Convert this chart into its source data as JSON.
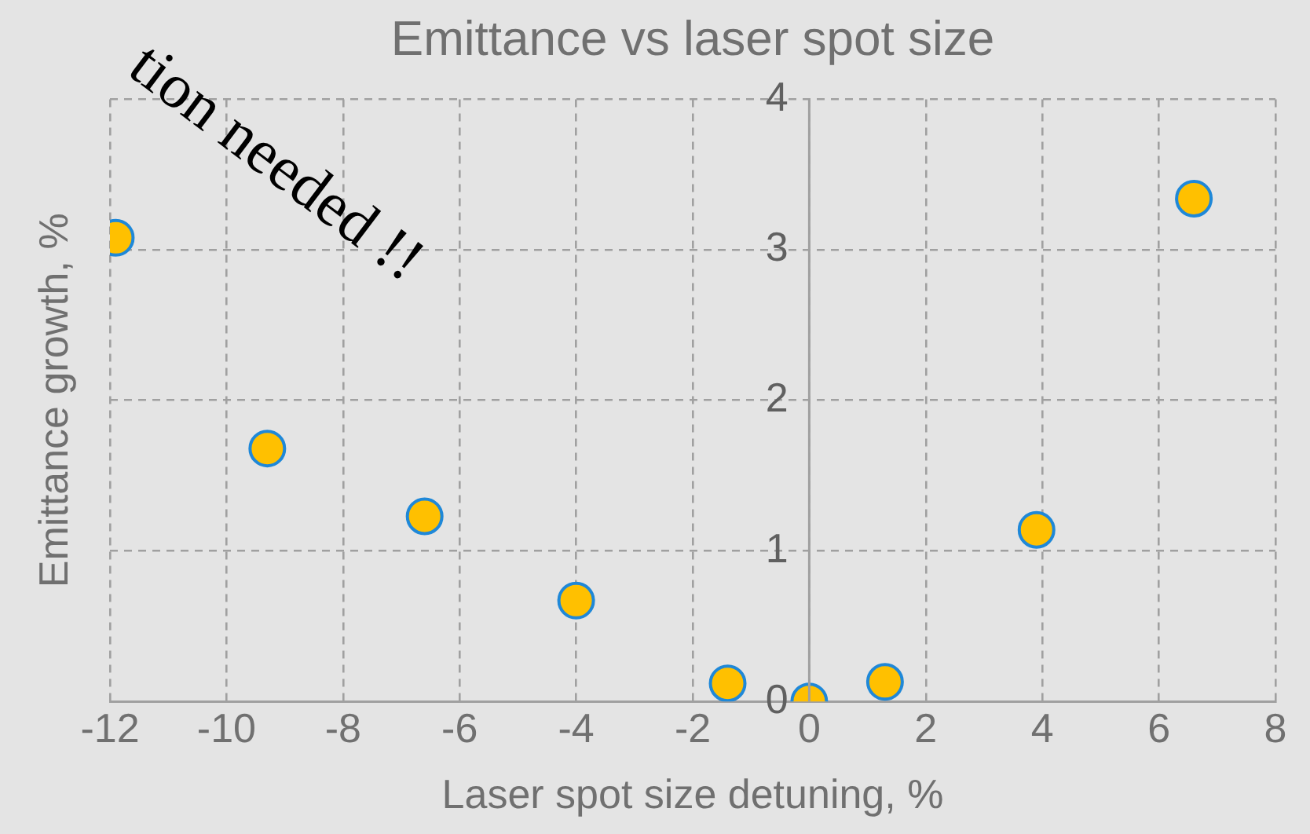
{
  "chart_data": {
    "type": "scatter",
    "title": "Emittance vs laser spot size",
    "xlabel": "Laser spot size detuning, %",
    "ylabel": "Emittance growth, %",
    "x": [
      -11.9,
      -9.3,
      -6.6,
      -4.0,
      -1.4,
      0,
      1.3,
      3.9,
      6.6
    ],
    "series": [
      {
        "color": "#ffc000",
        "values": [
          3.08,
          1.68,
          1.23,
          0.67,
          0.12,
          0,
          0.13,
          1.14,
          3.34
        ]
      }
    ],
    "xlim": [
      -12,
      8
    ],
    "xticks": [
      -12,
      -10,
      -8,
      -6,
      -4,
      -2,
      0,
      2,
      4,
      6,
      8
    ],
    "ylim": [
      0,
      4
    ],
    "yticks": [
      0,
      1,
      2,
      3,
      4
    ],
    "grid": true,
    "legend": false,
    "marker": "circle",
    "annotations": [
      "tion needed !!"
    ]
  }
}
